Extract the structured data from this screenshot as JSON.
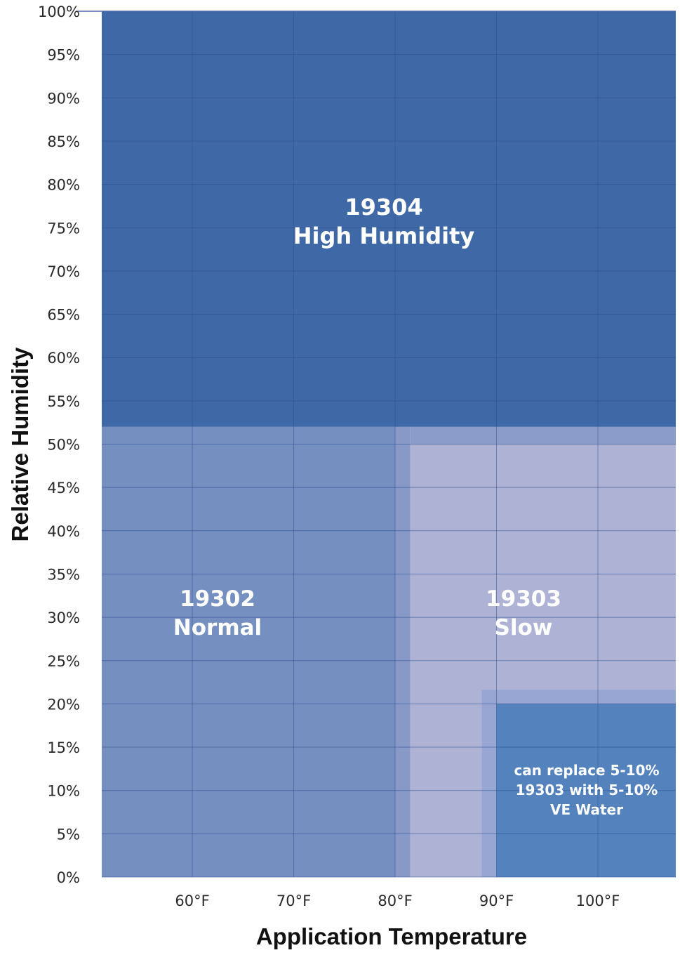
{
  "chart_data": {
    "type": "area",
    "xlabel": "Application Temperature",
    "ylabel": "Relative Humidity",
    "x_ticks": [
      {
        "value": 60,
        "label": "60°F"
      },
      {
        "value": 70,
        "label": "70°F"
      },
      {
        "value": 80,
        "label": "80°F"
      },
      {
        "value": 90,
        "label": "90°F"
      },
      {
        "value": 100,
        "label": "100°F"
      }
    ],
    "y_ticks": [
      {
        "value": 0,
        "label": "0%"
      },
      {
        "value": 5,
        "label": "5%"
      },
      {
        "value": 10,
        "label": "10%"
      },
      {
        "value": 15,
        "label": "15%"
      },
      {
        "value": 20,
        "label": "20%"
      },
      {
        "value": 25,
        "label": "25%"
      },
      {
        "value": 30,
        "label": "30%"
      },
      {
        "value": 35,
        "label": "35%"
      },
      {
        "value": 40,
        "label": "40%"
      },
      {
        "value": 45,
        "label": "45%"
      },
      {
        "value": 50,
        "label": "50%"
      },
      {
        "value": 55,
        "label": "55%"
      },
      {
        "value": 60,
        "label": "60%"
      },
      {
        "value": 65,
        "label": "65%"
      },
      {
        "value": 70,
        "label": "70%"
      },
      {
        "value": 75,
        "label": "75%"
      },
      {
        "value": 80,
        "label": "80%"
      },
      {
        "value": 85,
        "label": "85%"
      },
      {
        "value": 90,
        "label": "90%"
      },
      {
        "value": 95,
        "label": "95%"
      },
      {
        "value": 100,
        "label": "100%"
      }
    ],
    "xlim": [
      51,
      108
    ],
    "ylim": [
      0,
      100
    ],
    "grid": true,
    "zones": [
      {
        "key": "normal",
        "lines": [
          "19302",
          "Normal"
        ],
        "x_range": [
          51,
          80
        ],
        "y_range": [
          0,
          52
        ],
        "color": "#748fc0"
      },
      {
        "key": "slow",
        "lines": [
          "19303",
          "Slow"
        ],
        "x_range": [
          81.5,
          108
        ],
        "y_range": [
          0,
          50
        ],
        "color": "#aeb3d6"
      },
      {
        "key": "high-humidity",
        "lines": [
          "19304",
          "High Humidity"
        ],
        "x_range": [
          51,
          108
        ],
        "y_range": [
          52,
          100
        ],
        "color": "#3f68a6"
      },
      {
        "key": "water",
        "lines": [
          "can replace 5-10%",
          "19303 with 5-10%",
          "VE Water"
        ],
        "x_range": [
          90,
          108
        ],
        "y_range": [
          0,
          20
        ],
        "color": "#5382bd"
      }
    ]
  },
  "colors": {
    "grid": "#2e4f8e",
    "axis_title": "#111111",
    "tick_text": "#2a2a2a",
    "zone_text": "#ffffff"
  }
}
